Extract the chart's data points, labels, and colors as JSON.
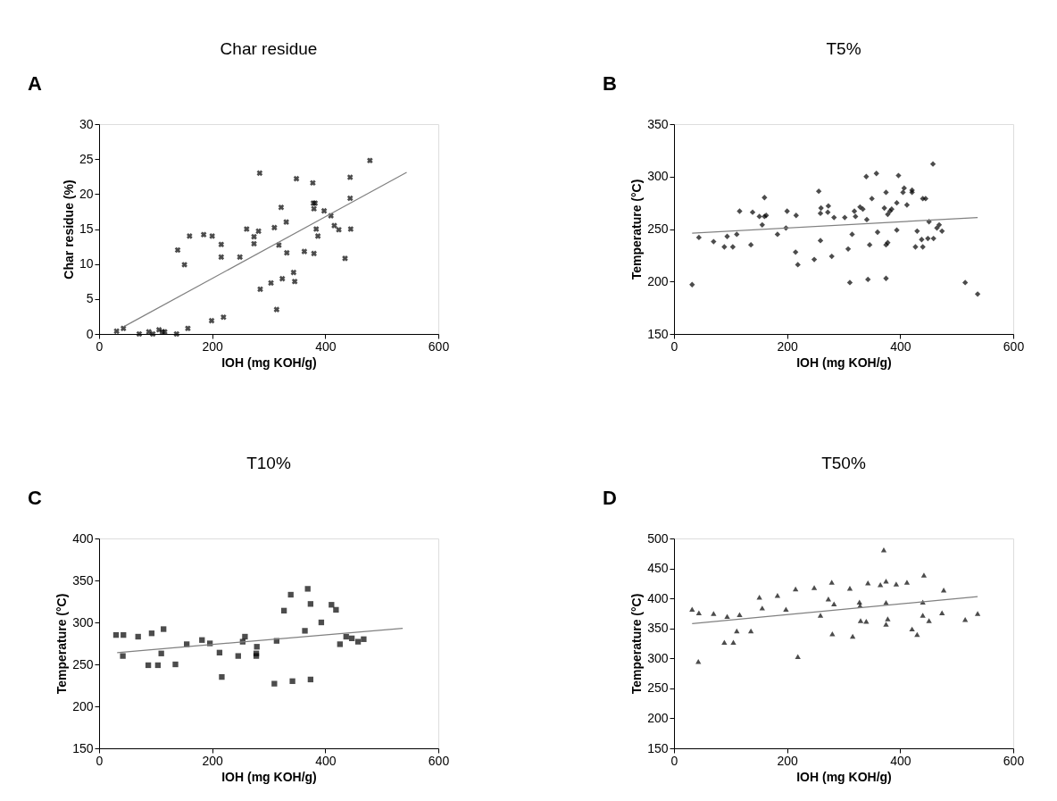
{
  "chart_data": [
    {
      "type": "scatter",
      "title": "Char residue",
      "xlabel": "IOH (mg KOH/g)",
      "ylabel": "Char residue (%)",
      "annotations": [
        "A"
      ],
      "grid": false,
      "xlim": [
        0,
        600
      ],
      "xticks": [
        0,
        200,
        400,
        600
      ],
      "ylim": [
        0,
        30
      ],
      "yticks": [
        0,
        5,
        10,
        15,
        20,
        25,
        30
      ],
      "series": [
        {
          "marker": "cross",
          "color": "#000000",
          "x": [
            31,
            43,
            71,
            88,
            95,
            106,
            112,
            116,
            137,
            157,
            139,
            151,
            160,
            185,
            200,
            199,
            216,
            216,
            220,
            249,
            261,
            274,
            274,
            282,
            284,
            285,
            304,
            310,
            314,
            318,
            322,
            324,
            331,
            332,
            344,
            346,
            349,
            363,
            378,
            379,
            380,
            382,
            380,
            384,
            387,
            398,
            410,
            416,
            424,
            435,
            444,
            444,
            445,
            479
          ],
          "values": [
            0.4,
            0.8,
            0,
            0.3,
            0,
            0.6,
            0.3,
            0.3,
            0,
            0.8,
            12.0,
            9.9,
            14.0,
            14.2,
            14.0,
            1.9,
            12.8,
            11.0,
            2.4,
            11.0,
            15.0,
            13.9,
            12.9,
            14.7,
            23.0,
            6.4,
            7.3,
            15.2,
            3.5,
            12.7,
            18.1,
            7.9,
            16.0,
            11.6,
            8.8,
            7.5,
            22.2,
            11.8,
            21.6,
            18.7,
            17.9,
            18.7,
            11.5,
            15.0,
            14.0,
            17.6,
            16.9,
            15.5,
            14.9,
            10.8,
            22.4,
            19.4,
            15.0,
            24.8
          ]
        },
        {
          "type": "line",
          "marker": "none",
          "color": "#808080",
          "x": [
            45,
            544
          ],
          "values": [
            1.1,
            23.1
          ]
        }
      ]
    },
    {
      "type": "scatter",
      "title": "T5%",
      "xlabel": "IOH (mg KOH/g)",
      "ylabel": "Temperature (°C)",
      "annotations": [
        "B"
      ],
      "grid": false,
      "xlim": [
        0,
        600
      ],
      "xticks": [
        0,
        200,
        400,
        600
      ],
      "ylim": [
        150,
        350
      ],
      "yticks": [
        150,
        200,
        250,
        300,
        350
      ],
      "series": [
        {
          "marker": "diamond",
          "color": "#000000",
          "x": [
            32,
            44,
            70,
            89,
            94,
            104,
            111,
            116,
            136,
            139,
            151,
            156,
            160,
            160,
            163,
            183,
            198,
            200,
            215,
            216,
            219,
            248,
            256,
            259,
            260,
            259,
            273,
            272,
            279,
            283,
            302,
            308,
            311,
            315,
            319,
            321,
            329,
            334,
            340,
            341,
            343,
            346,
            350,
            358,
            360,
            372,
            375,
            375,
            375,
            378,
            378,
            382,
            385,
            394,
            394,
            397,
            405,
            407,
            412,
            421,
            421,
            427,
            430,
            438,
            440,
            440,
            445,
            449,
            451,
            458,
            459,
            465,
            469,
            474,
            515,
            537
          ],
          "values": [
            197,
            242,
            238,
            233,
            243,
            233,
            245,
            267,
            235,
            266,
            262,
            254,
            280,
            262,
            263,
            245,
            251,
            267,
            228,
            263,
            216,
            221,
            286,
            239,
            270,
            265,
            272,
            266,
            224,
            261,
            261,
            231,
            199,
            245,
            267,
            262,
            271,
            269,
            300,
            259,
            202,
            235,
            279,
            303,
            247,
            270,
            285,
            235,
            203,
            237,
            264,
            267,
            269,
            275,
            249,
            301,
            285,
            289,
            273,
            287,
            285,
            233,
            248,
            240,
            233,
            279,
            279,
            241,
            257,
            312,
            241,
            251,
            254,
            248,
            199,
            188
          ]
        },
        {
          "type": "line",
          "marker": "none",
          "color": "#808080",
          "x": [
            32,
            537
          ],
          "values": [
            246,
            261
          ]
        }
      ]
    },
    {
      "type": "scatter",
      "title": "T10%",
      "xlabel": "IOH (mg KOH/g)",
      "ylabel": "Temperature (°C)",
      "annotations": [
        "C"
      ],
      "grid": false,
      "xlim": [
        0,
        600
      ],
      "xticks": [
        0,
        200,
        400,
        600
      ],
      "ylim": [
        150,
        400
      ],
      "yticks": [
        150,
        200,
        250,
        300,
        350,
        400
      ],
      "series": [
        {
          "marker": "square",
          "color": "#000000",
          "x": [
            30,
            43,
            42,
            69,
            87,
            93,
            104,
            110,
            114,
            135,
            155,
            182,
            196,
            213,
            217,
            246,
            254,
            258,
            279,
            278,
            278,
            310,
            314,
            327,
            339,
            342,
            364,
            369,
            374,
            374,
            393,
            411,
            419,
            426,
            437,
            447,
            458,
            468
          ],
          "values": [
            285,
            285,
            260,
            283,
            249,
            287,
            249,
            263,
            292,
            250,
            274,
            279,
            275,
            264,
            235,
            260,
            277,
            283,
            271,
            263,
            260,
            227,
            278,
            314,
            333,
            230,
            290,
            340,
            322,
            232,
            300,
            321,
            315,
            274,
            283,
            281,
            277,
            280
          ]
        },
        {
          "type": "line",
          "marker": "none",
          "color": "#808080",
          "x": [
            32,
            537
          ],
          "values": [
            264,
            293
          ]
        }
      ]
    },
    {
      "type": "scatter",
      "title": "T50%",
      "xlabel": "IOH (mg KOH/g)",
      "ylabel": "Temperature (°C)",
      "annotations": [
        "D"
      ],
      "grid": false,
      "xlim": [
        0,
        600
      ],
      "xticks": [
        0,
        200,
        400,
        600
      ],
      "ylim": [
        150,
        500
      ],
      "yticks": [
        150,
        200,
        250,
        300,
        350,
        400,
        450,
        500
      ],
      "series": [
        {
          "marker": "triangle",
          "color": "#000000",
          "x": [
            32,
            44,
            70,
            89,
            94,
            105,
            43,
            111,
            116,
            136,
            151,
            156,
            183,
            198,
            215,
            219,
            248,
            259,
            273,
            279,
            283,
            280,
            311,
            316,
            328,
            329,
            330,
            340,
            343,
            365,
            371,
            375,
            375,
            375,
            378,
            393,
            412,
            421,
            430,
            440,
            440,
            442,
            451,
            474,
            477,
            515,
            537
          ],
          "values": [
            382,
            376,
            375,
            327,
            370,
            327,
            295,
            346,
            373,
            346,
            402,
            384,
            405,
            382,
            416,
            303,
            418,
            372,
            399,
            427,
            391,
            341,
            417,
            337,
            394,
            388,
            363,
            362,
            426,
            423,
            481,
            429,
            393,
            357,
            366,
            424,
            427,
            349,
            340,
            394,
            372,
            439,
            363,
            376,
            414,
            365,
            375
          ]
        },
        {
          "type": "line",
          "marker": "none",
          "color": "#808080",
          "x": [
            32,
            537
          ],
          "values": [
            358,
            403
          ]
        }
      ]
    }
  ]
}
